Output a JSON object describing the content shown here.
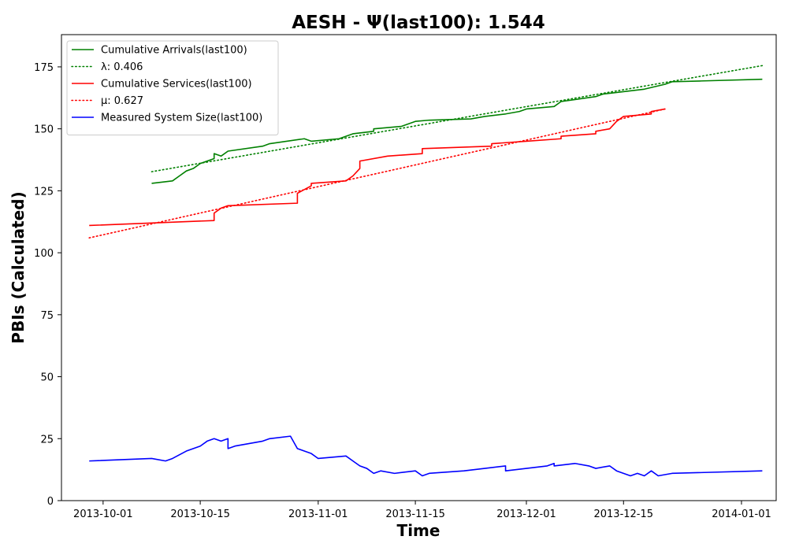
{
  "chart_data": {
    "type": "line",
    "title": "AESH -  Ψ(last100): 1.544",
    "xlabel": "Time",
    "ylabel": "PBIs (Calculated)",
    "x_axis": {
      "kind": "date",
      "range": [
        "2013-09-25",
        "2014-01-06"
      ],
      "ticks": [
        "2013-10-01",
        "2013-10-15",
        "2013-11-01",
        "2013-11-15",
        "2013-12-01",
        "2013-12-15",
        "2014-01-01"
      ]
    },
    "y_axis": {
      "range": [
        0,
        188
      ],
      "ticks": [
        0,
        25,
        50,
        75,
        100,
        125,
        150,
        175
      ]
    },
    "grid": false,
    "legend_position": "top-left",
    "series": [
      {
        "name": "Cumulative Arrivals(last100)",
        "color": "#008000",
        "style": "solid",
        "points": [
          [
            "2013-10-08",
            128
          ],
          [
            "2013-10-11",
            129
          ],
          [
            "2013-10-12",
            131
          ],
          [
            "2013-10-13",
            133
          ],
          [
            "2013-10-14",
            134
          ],
          [
            "2013-10-15",
            136
          ],
          [
            "2013-10-17",
            138
          ],
          [
            "2013-10-17",
            140
          ],
          [
            "2013-10-18",
            139
          ],
          [
            "2013-10-19",
            141
          ],
          [
            "2013-10-24",
            143
          ],
          [
            "2013-10-25",
            144
          ],
          [
            "2013-10-30",
            146
          ],
          [
            "2013-10-31",
            145
          ],
          [
            "2013-11-04",
            146
          ],
          [
            "2013-11-05",
            147
          ],
          [
            "2013-11-06",
            148
          ],
          [
            "2013-11-09",
            149
          ],
          [
            "2013-11-09",
            150
          ],
          [
            "2013-11-13",
            151
          ],
          [
            "2013-11-15",
            153
          ],
          [
            "2013-11-17",
            153.5
          ],
          [
            "2013-11-23",
            154
          ],
          [
            "2013-11-25",
            155
          ],
          [
            "2013-11-28",
            156
          ],
          [
            "2013-11-30",
            157
          ],
          [
            "2013-12-01",
            158
          ],
          [
            "2013-12-05",
            159
          ],
          [
            "2013-12-06",
            161
          ],
          [
            "2013-12-11",
            163
          ],
          [
            "2013-12-12",
            164
          ],
          [
            "2013-12-18",
            166
          ],
          [
            "2013-12-21",
            168
          ],
          [
            "2013-12-22",
            169
          ],
          [
            "2013-12-26",
            169.3
          ],
          [
            "2014-01-04",
            170
          ]
        ]
      },
      {
        "name": "λ: 0.406",
        "color": "#008000",
        "style": "dotted",
        "points": [
          [
            "2013-10-08",
            132.7
          ],
          [
            "2014-01-04",
            175.5
          ]
        ]
      },
      {
        "name": "Cumulative Services(last100)",
        "color": "#ff0000",
        "style": "solid",
        "points": [
          [
            "2013-09-29",
            111
          ],
          [
            "2013-10-08",
            112
          ],
          [
            "2013-10-17",
            113
          ],
          [
            "2013-10-17",
            116
          ],
          [
            "2013-10-18",
            118
          ],
          [
            "2013-10-19",
            119
          ],
          [
            "2013-10-29",
            120
          ],
          [
            "2013-10-29",
            124
          ],
          [
            "2013-10-31",
            127
          ],
          [
            "2013-10-31",
            128
          ],
          [
            "2013-11-05",
            129
          ],
          [
            "2013-11-06",
            131
          ],
          [
            "2013-11-07",
            134
          ],
          [
            "2013-11-07",
            137
          ],
          [
            "2013-11-11",
            139
          ],
          [
            "2013-11-16",
            140
          ],
          [
            "2013-11-16",
            142
          ],
          [
            "2013-11-26",
            143
          ],
          [
            "2013-11-26",
            144
          ],
          [
            "2013-12-01",
            145
          ],
          [
            "2013-12-06",
            146
          ],
          [
            "2013-12-06",
            147
          ],
          [
            "2013-12-11",
            148
          ],
          [
            "2013-12-11",
            149
          ],
          [
            "2013-12-13",
            150
          ],
          [
            "2013-12-14",
            153
          ],
          [
            "2013-12-15",
            155
          ],
          [
            "2013-12-19",
            156
          ],
          [
            "2013-12-19",
            157
          ],
          [
            "2013-12-21",
            158
          ]
        ]
      },
      {
        "name": "μ: 0.627",
        "color": "#ff0000",
        "style": "dotted",
        "points": [
          [
            "2013-09-29",
            106
          ],
          [
            "2013-12-21",
            158
          ]
        ]
      },
      {
        "name": "Measured System Size(last100)",
        "color": "#0000ff",
        "style": "solid",
        "points": [
          [
            "2013-09-29",
            16
          ],
          [
            "2013-10-08",
            17
          ],
          [
            "2013-10-10",
            16
          ],
          [
            "2013-10-11",
            17
          ],
          [
            "2013-10-13",
            20
          ],
          [
            "2013-10-14",
            21
          ],
          [
            "2013-10-15",
            22
          ],
          [
            "2013-10-16",
            24
          ],
          [
            "2013-10-17",
            25
          ],
          [
            "2013-10-18",
            24
          ],
          [
            "2013-10-19",
            25
          ],
          [
            "2013-10-19",
            21
          ],
          [
            "2013-10-20",
            22
          ],
          [
            "2013-10-24",
            24
          ],
          [
            "2013-10-25",
            25
          ],
          [
            "2013-10-28",
            26
          ],
          [
            "2013-10-29",
            21
          ],
          [
            "2013-10-30",
            20
          ],
          [
            "2013-10-31",
            19
          ],
          [
            "2013-11-01",
            17
          ],
          [
            "2013-11-05",
            18
          ],
          [
            "2013-11-06",
            16
          ],
          [
            "2013-11-07",
            14
          ],
          [
            "2013-11-08",
            13
          ],
          [
            "2013-11-09",
            11
          ],
          [
            "2013-11-10",
            12
          ],
          [
            "2013-11-12",
            11
          ],
          [
            "2013-11-15",
            12
          ],
          [
            "2013-11-16",
            10
          ],
          [
            "2013-11-17",
            11
          ],
          [
            "2013-11-22",
            12
          ],
          [
            "2013-11-25",
            13
          ],
          [
            "2013-11-28",
            14
          ],
          [
            "2013-11-28",
            12
          ],
          [
            "2013-12-01",
            13
          ],
          [
            "2013-12-04",
            14
          ],
          [
            "2013-12-05",
            15
          ],
          [
            "2013-12-05",
            14
          ],
          [
            "2013-12-08",
            15
          ],
          [
            "2013-12-10",
            14
          ],
          [
            "2013-12-11",
            13
          ],
          [
            "2013-12-13",
            14
          ],
          [
            "2013-12-14",
            12
          ],
          [
            "2013-12-15",
            11
          ],
          [
            "2013-12-16",
            10
          ],
          [
            "2013-12-17",
            11
          ],
          [
            "2013-12-18",
            10
          ],
          [
            "2013-12-19",
            12
          ],
          [
            "2013-12-20",
            10
          ],
          [
            "2013-12-22",
            11
          ],
          [
            "2014-01-04",
            12
          ]
        ]
      }
    ]
  }
}
